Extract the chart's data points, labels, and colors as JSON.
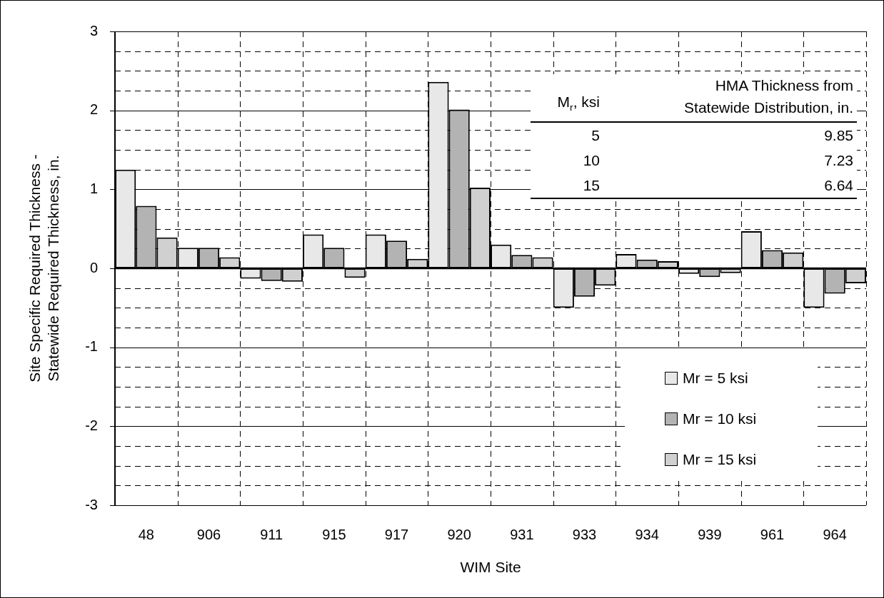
{
  "chart_data": {
    "type": "bar",
    "xlabel": "WIM Site",
    "ylabel": "Site Specific Required Thickness - Statewide Required Thickness, in.",
    "categories": [
      "48",
      "906",
      "911",
      "915",
      "917",
      "920",
      "931",
      "933",
      "934",
      "939",
      "961",
      "964"
    ],
    "series": [
      {
        "name": "Mr = 5 ksi",
        "color": "#e8e8e8",
        "values": [
          1.25,
          0.26,
          -0.13,
          0.43,
          0.43,
          2.36,
          0.3,
          -0.5,
          0.18,
          -0.07,
          0.47,
          -0.5
        ]
      },
      {
        "name": "Mr = 10 ksi",
        "color": "#b3b3b3",
        "values": [
          0.79,
          0.26,
          -0.16,
          0.26,
          0.35,
          2.01,
          0.17,
          -0.36,
          0.11,
          -0.11,
          0.23,
          -0.32
        ]
      },
      {
        "name": "Mr = 15 ksi",
        "color": "#d0d0d0",
        "values": [
          0.39,
          0.14,
          -0.17,
          -0.12,
          0.12,
          1.02,
          0.14,
          -0.22,
          0.09,
          -0.06,
          0.2,
          -0.19
        ]
      }
    ],
    "ylim": [
      -3,
      3
    ],
    "yticks": [
      -3,
      {
        "value": -2.75,
        "label": null
      },
      {
        "value": -2.5,
        "label": null
      },
      {
        "value": -2.25,
        "label": null
      },
      -2,
      {
        "value": -1.75,
        "label": null
      },
      {
        "value": -1.5,
        "label": null
      },
      {
        "value": -1.25,
        "label": null
      },
      -1,
      {
        "value": -0.75,
        "label": null
      },
      {
        "value": -0.5,
        "label": null
      },
      {
        "value": -0.25,
        "label": null
      },
      0,
      {
        "value": 0.25,
        "label": null
      },
      {
        "value": 0.5,
        "label": null
      },
      {
        "value": 0.75,
        "label": null
      },
      1,
      {
        "value": 1.25,
        "label": null
      },
      {
        "value": 1.5,
        "label": null
      },
      {
        "value": 1.75,
        "label": null
      },
      2,
      {
        "value": 2.25,
        "label": null
      },
      {
        "value": 2.5,
        "label": null
      },
      {
        "value": 2.75,
        "label": null
      },
      3
    ],
    "grid": true,
    "legend": "bottom right",
    "annotations": [
      "M$_{r}$, ksi",
      "HMA Thickness from Statewide Distribution, in.",
      "5",
      "9.85",
      "10",
      "7.23",
      "15",
      "6.64"
    ]
  }
}
